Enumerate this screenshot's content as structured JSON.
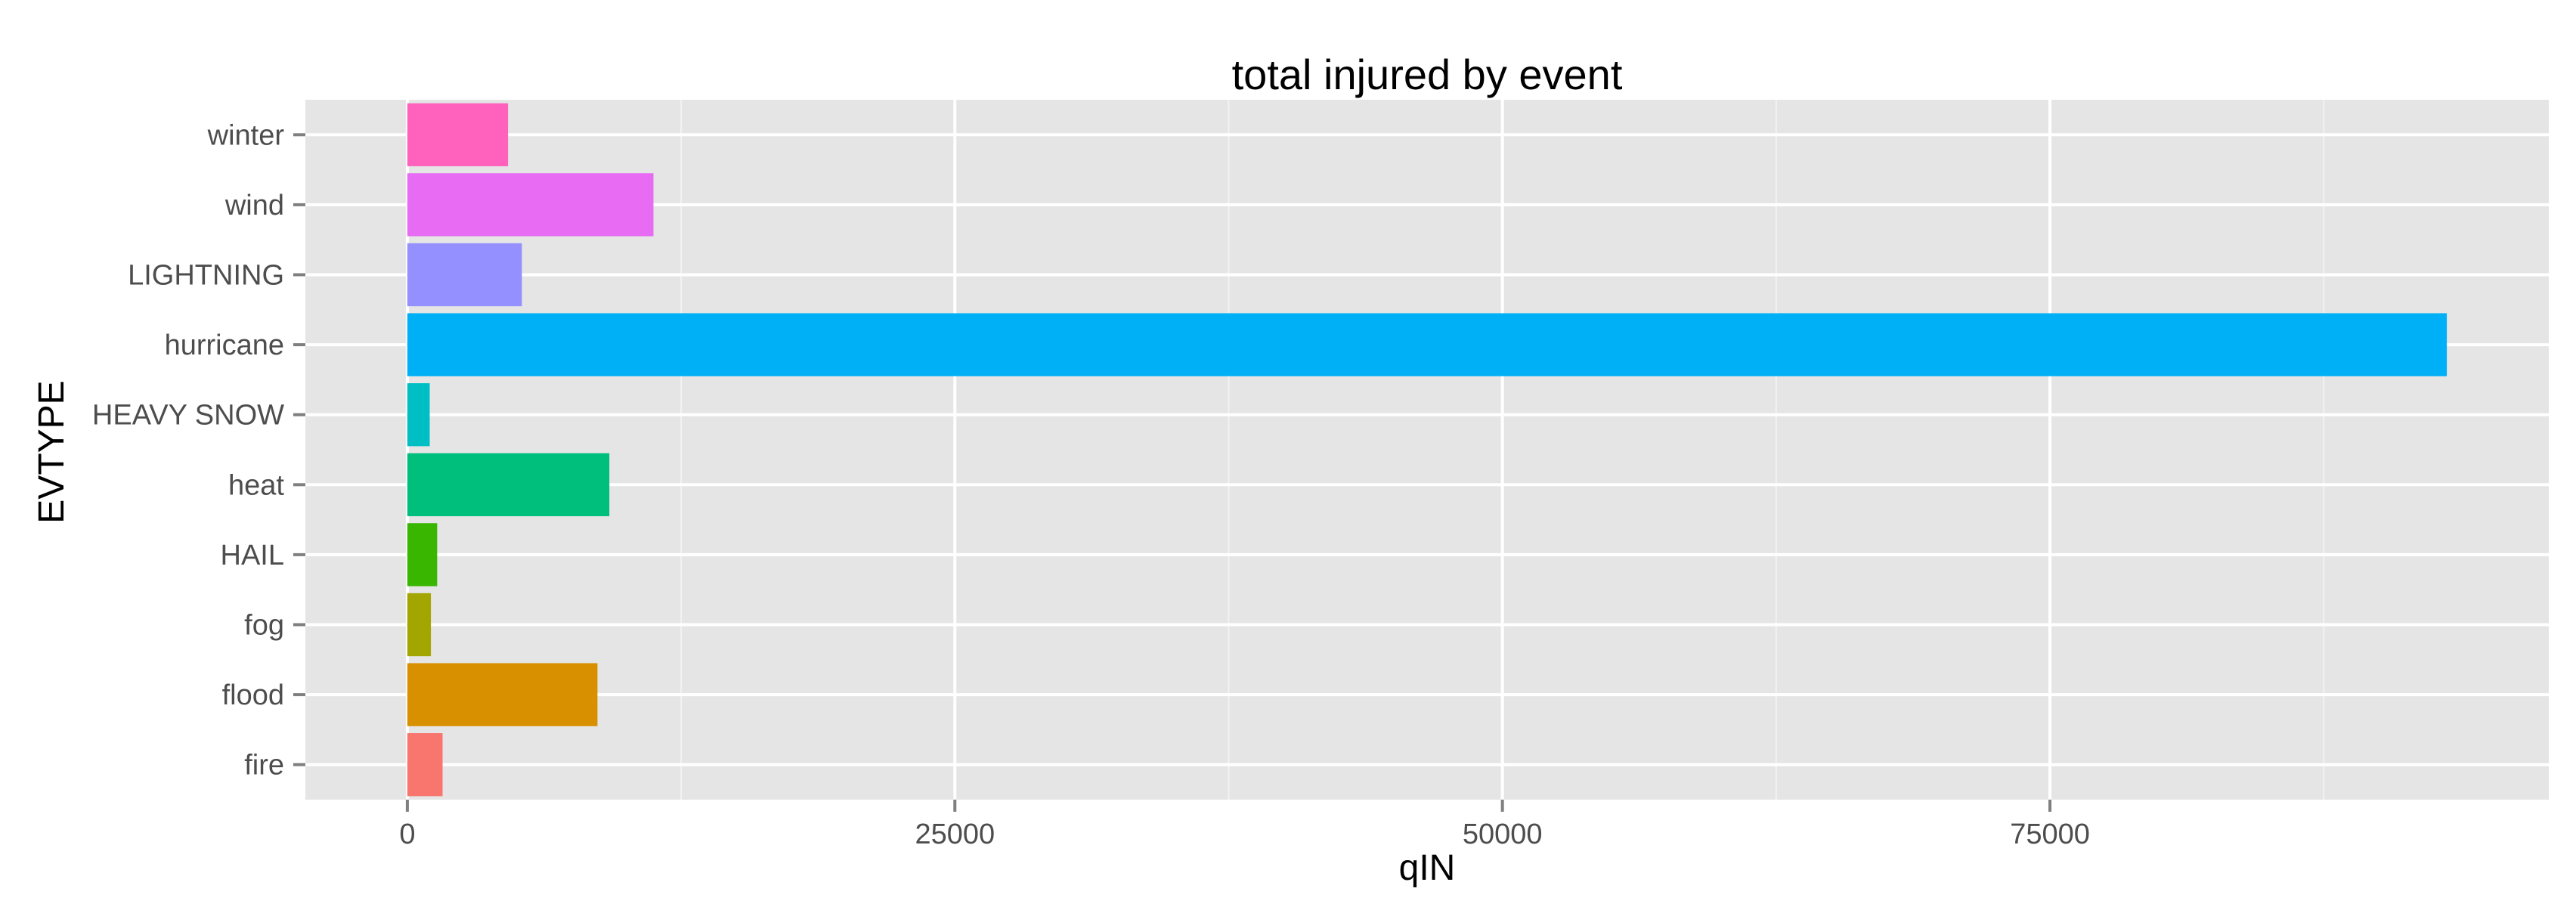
{
  "chart_data": {
    "type": "bar",
    "orientation": "horizontal",
    "title": "total injured by event",
    "xlabel": "qIN",
    "ylabel": "EVTYPE",
    "categories": [
      "fire",
      "flood",
      "fog",
      "HAIL",
      "heat",
      "HEAVY SNOW",
      "hurricane",
      "LIGHTNING",
      "wind",
      "winter"
    ],
    "values": [
      1608,
      8681,
      1077,
      1361,
      9224,
      1021,
      93121,
      5230,
      11237,
      4597
    ],
    "colors": [
      "#F8766D",
      "#D89000",
      "#A3A500",
      "#39B600",
      "#00BF7D",
      "#00BFC4",
      "#00B0F6",
      "#9590FF",
      "#E76BF3",
      "#FF62BC"
    ],
    "x_ticks": [
      0,
      25000,
      50000,
      75000
    ],
    "x_tick_labels": [
      "0",
      "25000",
      "50000",
      "75000"
    ],
    "xlim": [
      -4656,
      97777
    ],
    "grid": true,
    "background": "#E5E5E5",
    "gridline_color": "#FFFFFF"
  }
}
